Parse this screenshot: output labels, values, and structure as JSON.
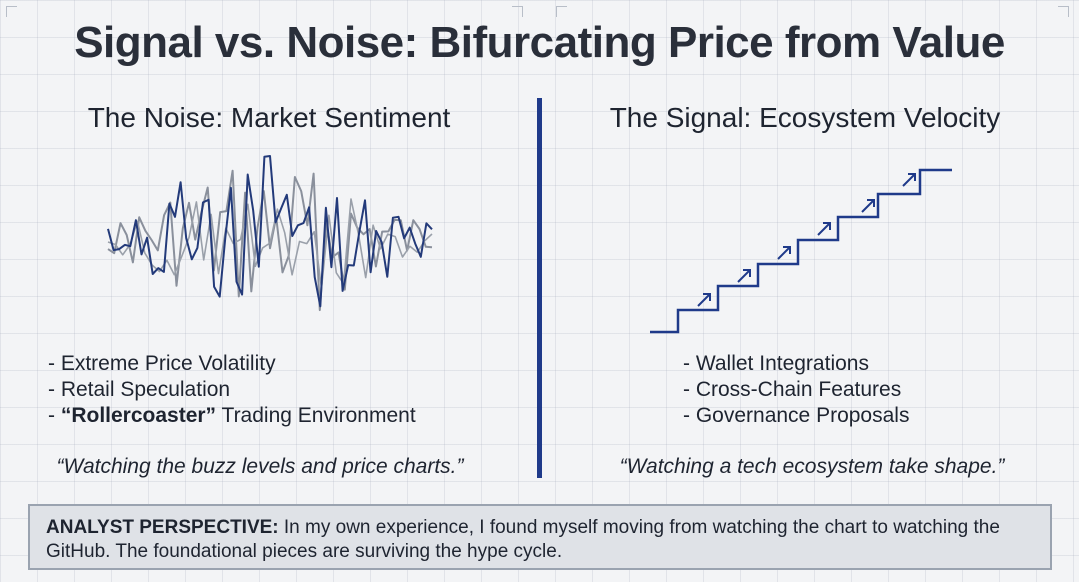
{
  "title": "Signal vs. Noise: Bifurcating Price from Value",
  "left": {
    "heading": "The Noise: Market Sentiment",
    "bullets": [
      {
        "prefix": "- ",
        "bold": "",
        "text": "Extreme Price Volatility"
      },
      {
        "prefix": "- ",
        "bold": "",
        "text": "Retail Speculation"
      },
      {
        "prefix": "- ",
        "bold": "“Rollercoaster”",
        "text": " Trading Environment"
      }
    ],
    "quote": "“Watching the buzz levels and price charts.”"
  },
  "right": {
    "heading": "The Signal: Ecosystem Velocity",
    "bullets": [
      {
        "prefix": "- ",
        "text": "Wallet Integrations"
      },
      {
        "prefix": "- ",
        "text": "Cross-Chain Features"
      },
      {
        "prefix": "- ",
        "text": "Governance Proposals"
      }
    ],
    "quote": "“Watching a tech ecosystem take shape.”"
  },
  "perspective": {
    "label": "ANALYST PERSPECTIVE:",
    "text": " In my own experience, I found myself moving from watching the chart to watching the GitHub. The foundational pieces are surviving the hype cycle."
  },
  "colors": {
    "accent": "#1f3a8a",
    "noise_dark": "#233a7a",
    "noise_light": "#8a909c"
  },
  "icons": {
    "noise": "noise-waveform-icon",
    "signal": "staircase-growth-icon",
    "step_arrow": "arrow-up-right-icon"
  }
}
